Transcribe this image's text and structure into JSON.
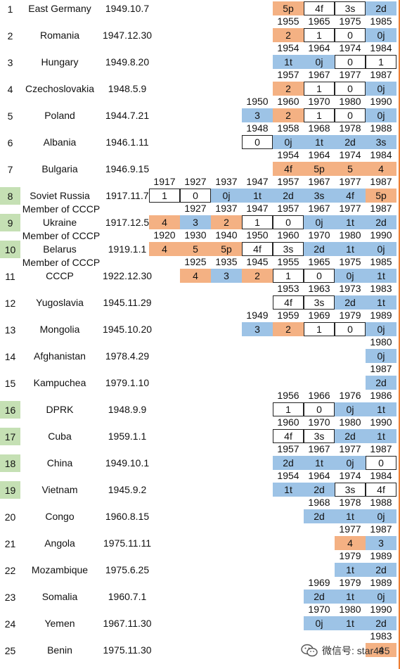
{
  "palette": {
    "blue": "#9dc3e6",
    "orange": "#f4b183",
    "highlight": "#c5e0b4",
    "line": "#ed7d31"
  },
  "rows": [
    {
      "n": "1",
      "name": "East Germany",
      "date": "1949.10.7",
      "hl": false,
      "years": [],
      "cells": [
        [
          "5p",
          "o",
          8
        ],
        [
          "4f",
          "w",
          9
        ],
        [
          "3s",
          "w",
          10
        ],
        [
          "2d",
          "b",
          11
        ]
      ]
    },
    {
      "n": "2",
      "name": "Romania",
      "date": "1947.12.30",
      "hl": false,
      "years": [
        [
          "1955",
          8
        ],
        [
          "1965",
          9
        ],
        [
          "1975",
          10
        ],
        [
          "1985",
          11
        ]
      ],
      "cells": [
        [
          "2",
          "o",
          8
        ],
        [
          "1",
          "w",
          9
        ],
        [
          "0",
          "w",
          10
        ],
        [
          "0j",
          "b",
          11
        ]
      ]
    },
    {
      "n": "3",
      "name": "Hungary",
      "date": "1949.8.20",
      "hl": false,
      "years": [
        [
          "1954",
          8
        ],
        [
          "1964",
          9
        ],
        [
          "1974",
          10
        ],
        [
          "1984",
          11
        ]
      ],
      "cells": [
        [
          "1t",
          "b",
          8
        ],
        [
          "0j",
          "b",
          9
        ],
        [
          "0",
          "w",
          10
        ],
        [
          "1",
          "w",
          11
        ]
      ]
    },
    {
      "n": "4",
      "name": "Czechoslovakia",
      "date": "1948.5.9",
      "hl": false,
      "years": [
        [
          "1957",
          8
        ],
        [
          "1967",
          9
        ],
        [
          "1977",
          10
        ],
        [
          "1987",
          11
        ]
      ],
      "cells": [
        [
          "2",
          "o",
          8
        ],
        [
          "1",
          "w",
          9
        ],
        [
          "0",
          "w",
          10
        ],
        [
          "0j",
          "b",
          11
        ]
      ]
    },
    {
      "n": "5",
      "name": "Poland",
      "date": "1944.7.21",
      "hl": false,
      "years": [
        [
          "1950",
          7
        ],
        [
          "1960",
          8
        ],
        [
          "1970",
          9
        ],
        [
          "1980",
          10
        ],
        [
          "1990",
          11
        ]
      ],
      "cells": [
        [
          "3",
          "b",
          7
        ],
        [
          "2",
          "o",
          8
        ],
        [
          "1",
          "w",
          9
        ],
        [
          "0",
          "w",
          10
        ],
        [
          "0j",
          "b",
          11
        ]
      ]
    },
    {
      "n": "6",
      "name": "Albania",
      "date": "1946.1.11",
      "hl": false,
      "years": [
        [
          "1948",
          7
        ],
        [
          "1958",
          8
        ],
        [
          "1968",
          9
        ],
        [
          "1978",
          10
        ],
        [
          "1988",
          11
        ]
      ],
      "cells": [
        [
          "0",
          "w",
          7
        ],
        [
          "0j",
          "b",
          8
        ],
        [
          "1t",
          "b",
          9
        ],
        [
          "2d",
          "b",
          10
        ],
        [
          "3s",
          "b",
          11
        ]
      ]
    },
    {
      "n": "7",
      "name": "Bulgaria",
      "date": "1946.9.15",
      "hl": false,
      "years": [
        [
          "1954",
          8
        ],
        [
          "1964",
          9
        ],
        [
          "1974",
          10
        ],
        [
          "1984",
          11
        ]
      ],
      "cells": [
        [
          "4f",
          "o",
          8
        ],
        [
          "5p",
          "o",
          9
        ],
        [
          "5",
          "o",
          10
        ],
        [
          "4",
          "o",
          11
        ]
      ]
    },
    {
      "n": "8",
      "name": "Soviet Russia",
      "date": "1917.11.7",
      "hl": true,
      "years": [
        [
          "1917",
          4
        ],
        [
          "1927",
          5
        ],
        [
          "1937",
          6
        ],
        [
          "1947",
          7
        ],
        [
          "1957",
          8
        ],
        [
          "1967",
          9
        ],
        [
          "1977",
          10
        ],
        [
          "1987",
          11
        ]
      ],
      "cells": [
        [
          "1",
          "w",
          4
        ],
        [
          "0",
          "w",
          5
        ],
        [
          "0j",
          "b",
          6
        ],
        [
          "1t",
          "b",
          7
        ],
        [
          "2d",
          "b",
          8
        ],
        [
          "3s",
          "b",
          9
        ],
        [
          "4f",
          "b",
          10
        ],
        [
          "5p",
          "o",
          11
        ]
      ]
    },
    {
      "n": "9",
      "name": "Ukraine",
      "sub": "Member of CCCP",
      "date": "1917.12.5",
      "hl": true,
      "years": [
        [
          "1927",
          5
        ],
        [
          "1937",
          6
        ],
        [
          "1947",
          7
        ],
        [
          "1957",
          8
        ],
        [
          "1967",
          9
        ],
        [
          "1977",
          10
        ],
        [
          "1987",
          11
        ]
      ],
      "cells": [
        [
          "4",
          "o",
          4
        ],
        [
          "3",
          "b",
          5
        ],
        [
          "2",
          "o",
          6
        ],
        [
          "1",
          "w",
          7
        ],
        [
          "0",
          "w",
          8
        ],
        [
          "0j",
          "b",
          9
        ],
        [
          "1t",
          "b",
          10
        ],
        [
          "2d",
          "b",
          11
        ]
      ]
    },
    {
      "n": "10",
      "name": "Belarus",
      "sub": "Member of CCCP",
      "date": "1919.1.1",
      "hl": true,
      "years": [
        [
          "1920",
          4
        ],
        [
          "1930",
          5
        ],
        [
          "1940",
          6
        ],
        [
          "1950",
          7
        ],
        [
          "1960",
          8
        ],
        [
          "1970",
          9
        ],
        [
          "1980",
          10
        ],
        [
          "1990",
          11
        ]
      ],
      "cells": [
        [
          "4",
          "o",
          4
        ],
        [
          "5",
          "o",
          5
        ],
        [
          "5p",
          "o",
          6
        ],
        [
          "4f",
          "w",
          7
        ],
        [
          "3s",
          "w",
          8
        ],
        [
          "2d",
          "b",
          9
        ],
        [
          "1t",
          "b",
          10
        ],
        [
          "0j",
          "b",
          11
        ]
      ]
    },
    {
      "n": "11",
      "name": "CCCP",
      "sub": "Member of CCCP",
      "date": "1922.12.30",
      "hl": false,
      "years": [
        [
          "1925",
          5
        ],
        [
          "1935",
          6
        ],
        [
          "1945",
          7
        ],
        [
          "1955",
          8
        ],
        [
          "1965",
          9
        ],
        [
          "1975",
          10
        ],
        [
          "1985",
          11
        ]
      ],
      "cells": [
        [
          "4",
          "o",
          5
        ],
        [
          "3",
          "b",
          6
        ],
        [
          "2",
          "o",
          7
        ],
        [
          "1",
          "w",
          8
        ],
        [
          "0",
          "w",
          9
        ],
        [
          "0j",
          "b",
          10
        ],
        [
          "1t",
          "b",
          11
        ]
      ]
    },
    {
      "n": "12",
      "name": "Yugoslavia",
      "date": "1945.11.29",
      "hl": false,
      "years": [
        [
          "1953",
          8
        ],
        [
          "1963",
          9
        ],
        [
          "1973",
          10
        ],
        [
          "1983",
          11
        ]
      ],
      "cells": [
        [
          "4f",
          "w",
          8
        ],
        [
          "3s",
          "w",
          9
        ],
        [
          "2d",
          "b",
          10
        ],
        [
          "1t",
          "b",
          11
        ]
      ]
    },
    {
      "n": "13",
      "name": "Mongolia",
      "date": "1945.10.20",
      "hl": false,
      "years": [
        [
          "1949",
          7
        ],
        [
          "1959",
          8
        ],
        [
          "1969",
          9
        ],
        [
          "1979",
          10
        ],
        [
          "1989",
          11
        ]
      ],
      "cells": [
        [
          "3",
          "b",
          7
        ],
        [
          "2",
          "o",
          8
        ],
        [
          "1",
          "w",
          9
        ],
        [
          "0",
          "w",
          10
        ],
        [
          "0j",
          "b",
          11
        ]
      ]
    },
    {
      "n": "14",
      "name": "Afghanistan",
      "date": "1978.4.29",
      "hl": false,
      "years": [
        [
          "1980",
          11
        ]
      ],
      "cells": [
        [
          "0j",
          "b",
          11
        ]
      ]
    },
    {
      "n": "15",
      "name": "Kampuchea",
      "date": "1979.1.10",
      "hl": false,
      "years": [
        [
          "1987",
          11
        ]
      ],
      "cells": [
        [
          "2d",
          "b",
          11
        ]
      ]
    },
    {
      "n": "16",
      "name": "DPRK",
      "date": "1948.9.9",
      "hl": true,
      "years": [
        [
          "1956",
          8
        ],
        [
          "1966",
          9
        ],
        [
          "1976",
          10
        ],
        [
          "1986",
          11
        ]
      ],
      "cells": [
        [
          "1",
          "w",
          8
        ],
        [
          "0",
          "w",
          9
        ],
        [
          "0j",
          "b",
          10
        ],
        [
          "1t",
          "b",
          11
        ]
      ]
    },
    {
      "n": "17",
      "name": "Cuba",
      "date": "1959.1.1",
      "hl": true,
      "years": [
        [
          "1960",
          8
        ],
        [
          "1970",
          9
        ],
        [
          "1980",
          10
        ],
        [
          "1990",
          11
        ]
      ],
      "cells": [
        [
          "4f",
          "w",
          8
        ],
        [
          "3s",
          "w",
          9
        ],
        [
          "2d",
          "b",
          10
        ],
        [
          "1t",
          "b",
          11
        ]
      ]
    },
    {
      "n": "18",
      "name": "China",
      "date": "1949.10.1",
      "hl": true,
      "years": [
        [
          "1957",
          8
        ],
        [
          "1967",
          9
        ],
        [
          "1977",
          10
        ],
        [
          "1987",
          11
        ]
      ],
      "cells": [
        [
          "2d",
          "b",
          8
        ],
        [
          "1t",
          "b",
          9
        ],
        [
          "0j",
          "b",
          10
        ],
        [
          "0",
          "w",
          11
        ]
      ]
    },
    {
      "n": "19",
      "name": "Vietnam",
      "date": "1945.9.2",
      "hl": true,
      "years": [
        [
          "1954",
          8
        ],
        [
          "1964",
          9
        ],
        [
          "1974",
          10
        ],
        [
          "1984",
          11
        ]
      ],
      "cells": [
        [
          "1t",
          "b",
          8
        ],
        [
          "2d",
          "b",
          9
        ],
        [
          "3s",
          "w",
          10
        ],
        [
          "4f",
          "w",
          11
        ]
      ]
    },
    {
      "n": "20",
      "name": "Congo",
      "date": "1960.8.15",
      "hl": false,
      "years": [
        [
          "1968",
          9
        ],
        [
          "1978",
          10
        ],
        [
          "1988",
          11
        ]
      ],
      "cells": [
        [
          "2d",
          "b",
          9
        ],
        [
          "1t",
          "b",
          10
        ],
        [
          "0j",
          "b",
          11
        ]
      ]
    },
    {
      "n": "21",
      "name": "Angola",
      "date": "1975.11.11",
      "hl": false,
      "years": [
        [
          "1977",
          10
        ],
        [
          "1987",
          11
        ]
      ],
      "cells": [
        [
          "4",
          "o",
          10
        ],
        [
          "3",
          "b",
          11
        ]
      ]
    },
    {
      "n": "22",
      "name": "Mozambique",
      "date": "1975.6.25",
      "hl": false,
      "years": [
        [
          "1979",
          10
        ],
        [
          "1989",
          11
        ]
      ],
      "cells": [
        [
          "1t",
          "b",
          10
        ],
        [
          "2d",
          "b",
          11
        ]
      ]
    },
    {
      "n": "23",
      "name": "Somalia",
      "date": "1960.7.1",
      "hl": false,
      "years": [
        [
          "1969",
          9
        ],
        [
          "1979",
          10
        ],
        [
          "1989",
          11
        ]
      ],
      "cells": [
        [
          "2d",
          "b",
          9
        ],
        [
          "1t",
          "b",
          10
        ],
        [
          "0j",
          "b",
          11
        ]
      ]
    },
    {
      "n": "24",
      "name": "Yemen",
      "date": "1967.11.30",
      "hl": false,
      "years": [
        [
          "1970",
          9
        ],
        [
          "1980",
          10
        ],
        [
          "1990",
          11
        ]
      ],
      "cells": [
        [
          "0j",
          "b",
          9
        ],
        [
          "1t",
          "b",
          10
        ],
        [
          "2d",
          "b",
          11
        ]
      ]
    },
    {
      "n": "25",
      "name": "Benin",
      "date": "1975.11.30",
      "hl": false,
      "years": [
        [
          "1983",
          11
        ]
      ],
      "cells": [
        [
          "4",
          "o",
          11
        ]
      ]
    }
  ],
  "watermark": {
    "text": "微信号: star485",
    "icon": "wechat-icon"
  }
}
